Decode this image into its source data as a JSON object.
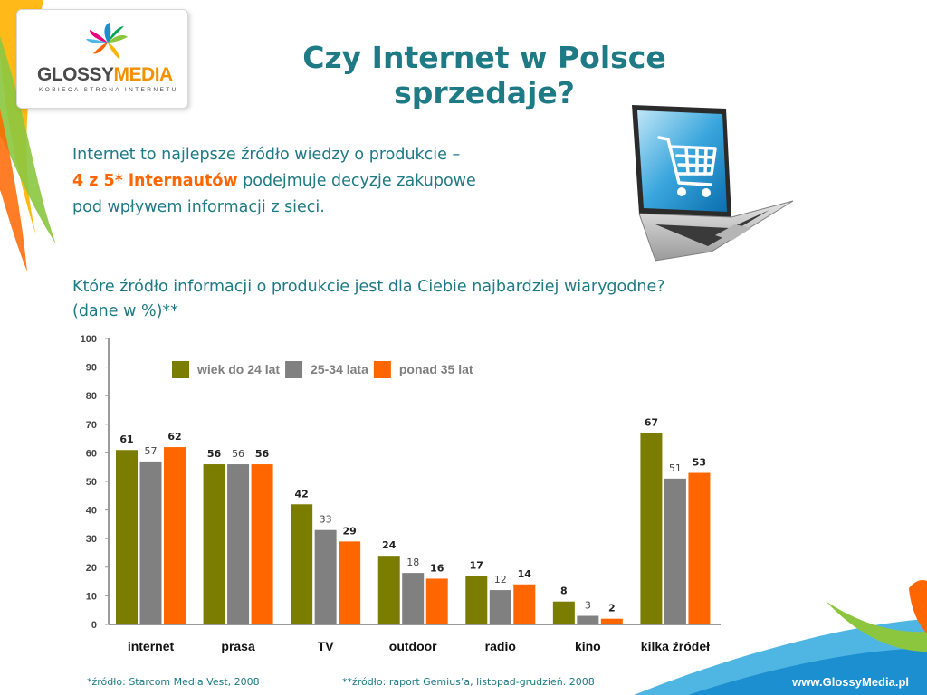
{
  "logo": {
    "word_a": "GLOSSY",
    "word_b": "MEDIA",
    "tagline": "KOBIECA STRONA INTERNETU"
  },
  "slide": {
    "title": "Czy Internet w Polsce sprzedaje?",
    "intro_line1": "Internet to najlepsze źródło wiedzy o produkcie –",
    "intro_highlight": "4 z 5* internautów",
    "intro_line2_rest": " podejmuje decyzje zakupowe",
    "intro_line3": "pod wpływem informacji z sieci.",
    "question_line1": "Które źródło informacji o produkcie jest dla Ciebie najbardziej wiarygodne?",
    "question_line2": "(dane w %)**"
  },
  "footer": {
    "note1": "*źródło: Starcom Media Vest, 2008",
    "note2": "**źródło: raport Gemius’a, listopad-grudzień. 2008",
    "site": "www.GlossyMedia.pl"
  },
  "icons": {
    "logo": "glossymedia-flower-logo",
    "hero": "laptop-shopping-cart-icon"
  },
  "colors": {
    "title": "#1e7a84",
    "accent": "#ff6600",
    "olive": "#7a7d00",
    "gray": "#808080",
    "orange": "#ff6600"
  },
  "chart_data": {
    "type": "bar",
    "categories": [
      "internet",
      "prasa",
      "TV",
      "outdoor",
      "radio",
      "kino",
      "kilka źródeł"
    ],
    "series": [
      {
        "name": "wiek do 24 lat",
        "color": "#7a7d00",
        "values": [
          61,
          56,
          42,
          24,
          17,
          8,
          67
        ]
      },
      {
        "name": "25-34 lata",
        "color": "#808080",
        "values": [
          57,
          56,
          33,
          18,
          12,
          3,
          51
        ]
      },
      {
        "name": "ponad 35 lat",
        "color": "#ff6600",
        "values": [
          62,
          56,
          29,
          16,
          14,
          2,
          53
        ]
      }
    ],
    "ylim": [
      0,
      100
    ],
    "yticks": [
      0,
      10,
      20,
      30,
      40,
      50,
      60,
      70,
      80,
      90,
      100
    ],
    "legend": "top-left",
    "grid": false
  }
}
